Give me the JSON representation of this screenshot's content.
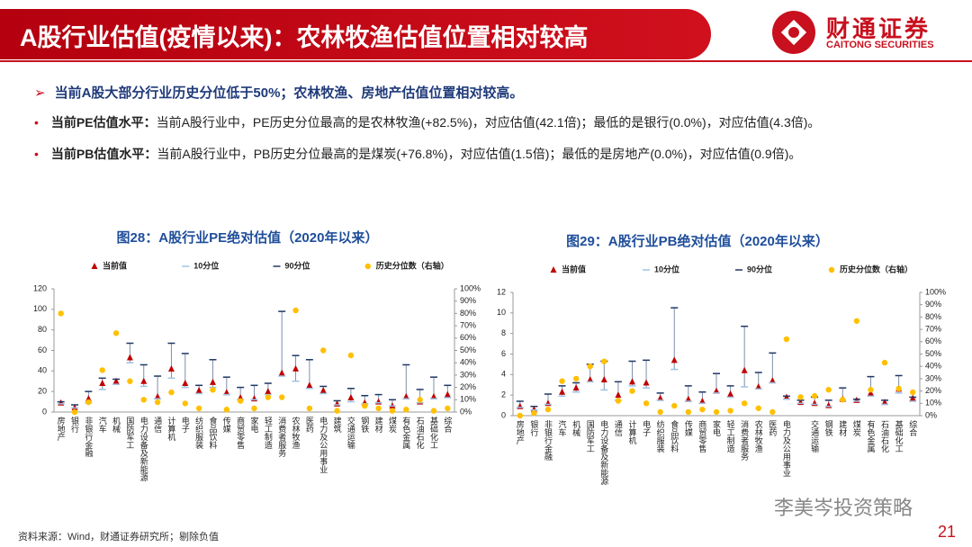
{
  "header": {
    "title": "A股行业估值(疫情以来)：农林牧渔估值位置相对较高",
    "logo_cn": "财通证券",
    "logo_en": "CAITONG SECURITIES"
  },
  "bullets": [
    {
      "text": "当前A股大部分行业历史分位低于50%；农林牧渔、房地产估值位置相对较高。"
    },
    {
      "label": "当前PE估值水平：",
      "text": "当前A股行业中，PE历史分位最高的是农林牧渔(+82.5%)，对应估值(42.1倍)；最低的是银行(0.0%)，对应估值(4.3倍)。"
    },
    {
      "label": "当前PB估值水平：",
      "text": "当前A股行业中，PB历史分位最高的是煤炭(+76.8%)，对应估值(1.5倍)；最低的是房地产(0.0%)，对应估值(0.9倍)。"
    }
  ],
  "chart_data": [
    {
      "type": "range_dot",
      "title": "图28：A股行业PE绝对估值（2020年以来）",
      "categories": [
        "房地产",
        "银行",
        "非银行金融",
        "汽车",
        "机械",
        "国防军工",
        "电力设备及新能源",
        "通信",
        "计算机",
        "电子",
        "纺织服装",
        "食品饮料",
        "传媒",
        "商贸零售",
        "家电",
        "轻工制造",
        "消费者服务",
        "农林牧渔",
        "医药",
        "电力及公用事业",
        "建筑",
        "交通运输",
        "钢铁",
        "建材",
        "煤炭",
        "有色金属",
        "石油石化",
        "基础化工",
        "综合"
      ],
      "series": [
        {
          "name": "当前值",
          "color": "#c00000",
          "marker": "triangle",
          "values": [
            9,
            4.3,
            13,
            28,
            30,
            53,
            30,
            15,
            42,
            28,
            21,
            29,
            19,
            14,
            13,
            20,
            38,
            42.1,
            26,
            21,
            8,
            14,
            9,
            10,
            6,
            15,
            10,
            15,
            17
          ]
        },
        {
          "name": "10分位",
          "color": "#9dc3e6",
          "marker": "dash",
          "values": [
            8,
            4,
            9,
            22,
            27,
            48,
            25,
            13,
            33,
            24,
            18,
            24,
            17,
            12,
            12,
            17,
            35,
            30,
            23,
            18,
            7,
            10,
            8,
            9,
            6,
            13,
            9,
            13,
            14
          ]
        },
        {
          "name": "90分位",
          "color": "#1f3864",
          "marker": "dash",
          "values": [
            10,
            7,
            20,
            33,
            32,
            67,
            46,
            35,
            67,
            57,
            26,
            51,
            34,
            24,
            26,
            28,
            98,
            55,
            51,
            25,
            11,
            23,
            16,
            17,
            12,
            46,
            22,
            34,
            26
          ]
        },
        {
          "name": "历史分位数（右轴）",
          "color": "#ffc000",
          "marker": "circle",
          "axis": "y2",
          "values": [
            80,
            0,
            8,
            34,
            64,
            25,
            10,
            8,
            16,
            7,
            3,
            18,
            2,
            9,
            3,
            12,
            12,
            82.5,
            3,
            50,
            1,
            46,
            5,
            3,
            1,
            2,
            10,
            1,
            3
          ]
        }
      ],
      "ylim": [
        0,
        120
      ],
      "yticks": [
        0,
        20,
        40,
        60,
        80,
        100,
        120
      ],
      "y2lim": [
        0,
        100
      ],
      "y2ticks": [
        {
          "value": 0,
          "label": "0%"
        },
        {
          "value": 10,
          "label": "10%"
        },
        {
          "value": 20,
          "label": "20%"
        },
        {
          "value": 30,
          "label": "30%"
        },
        {
          "value": 40,
          "label": "40%"
        },
        {
          "value": 50,
          "label": "50%"
        },
        {
          "value": 60,
          "label": "60%"
        },
        {
          "value": 70,
          "label": "70%"
        },
        {
          "value": 80,
          "label": "80%"
        },
        {
          "value": 90,
          "label": "90%"
        },
        {
          "value": 100,
          "label": "100%"
        }
      ]
    },
    {
      "type": "range_dot",
      "title": "图29：A股行业PB绝对估值（2020年以来）",
      "categories": [
        "房地产",
        "银行",
        "非银行金融",
        "汽车",
        "机械",
        "国防军工",
        "电力设备及新能源",
        "通信",
        "计算机",
        "电子",
        "纺织服装",
        "食品饮料",
        "传媒",
        "商贸零售",
        "家电",
        "轻工制造",
        "消费者服务",
        "农林牧渔",
        "医药",
        "电力及公用事业",
        null,
        "交通运输",
        "钢铁",
        "建材",
        "煤炭",
        "有色金属",
        "石油石化",
        "基础化工",
        "综合"
      ],
      "series": [
        {
          "name": "当前值",
          "color": "#c00000",
          "marker": "triangle",
          "values": [
            0.9,
            0.6,
            1.2,
            2.3,
            2.7,
            3.5,
            3.5,
            2.0,
            3.3,
            3.2,
            1.7,
            5.4,
            1.6,
            1.4,
            2.4,
            2.1,
            4.4,
            2.8,
            3.4,
            1.8,
            1.3,
            1.2,
            1.0,
            1.6,
            1.5,
            2.2,
            1.3,
            2.6,
            1.7
          ]
        },
        {
          "name": "10分位",
          "color": "#9dc3e6",
          "marker": "dash",
          "values": [
            0.8,
            0.55,
            1.1,
            1.9,
            2.3,
            3.3,
            2.5,
            1.5,
            2.9,
            2.7,
            1.5,
            4.5,
            1.4,
            1.2,
            2.2,
            1.8,
            2.8,
            2.6,
            3.2,
            1.6,
            1.2,
            1.1,
            0.9,
            1.5,
            1.4,
            1.9,
            1.1,
            2.2,
            1.4
          ]
        },
        {
          "name": "90分位",
          "color": "#1f3864",
          "marker": "dash",
          "values": [
            1.4,
            0.9,
            2.1,
            2.9,
            3.2,
            5.0,
            5.3,
            3.3,
            5.3,
            5.4,
            2.2,
            10.5,
            2.9,
            2.3,
            4.1,
            2.9,
            8.7,
            4.2,
            6.1,
            1.9,
            1.5,
            1.8,
            1.5,
            2.7,
            1.6,
            3.8,
            1.5,
            3.9,
            1.8
          ]
        },
        {
          "name": "历史分位数（右轴）",
          "color": "#ffc000",
          "marker": "circle",
          "axis": "y2",
          "values": [
            0,
            2,
            5,
            28,
            30,
            40,
            44,
            12,
            20,
            10,
            3,
            8,
            3,
            5,
            3,
            4,
            10,
            6,
            3,
            62,
            15,
            16,
            21,
            13,
            76.8,
            21,
            43,
            22,
            19
          ]
        }
      ],
      "ylim": [
        0,
        12
      ],
      "yticks": [
        0,
        2,
        4,
        6,
        8,
        10,
        12
      ],
      "y2lim": [
        0,
        100
      ],
      "y2ticks": [
        {
          "value": 0,
          "label": "0%"
        },
        {
          "value": 10,
          "label": "10%"
        },
        {
          "value": 20,
          "label": "20%"
        },
        {
          "value": 30,
          "label": "30%"
        },
        {
          "value": 40,
          "label": "40%"
        },
        {
          "value": 50,
          "label": "50%"
        },
        {
          "value": 60,
          "label": "60%"
        },
        {
          "value": 70,
          "label": "70%"
        },
        {
          "value": 80,
          "label": "80%"
        },
        {
          "value": 90,
          "label": "90%"
        },
        {
          "value": 100,
          "label": "100%"
        }
      ]
    }
  ],
  "footer": {
    "source": "资料来源：Wind，财通证券研究所；剔除负值",
    "watermark": "李美岑投资策略",
    "page": "21"
  }
}
